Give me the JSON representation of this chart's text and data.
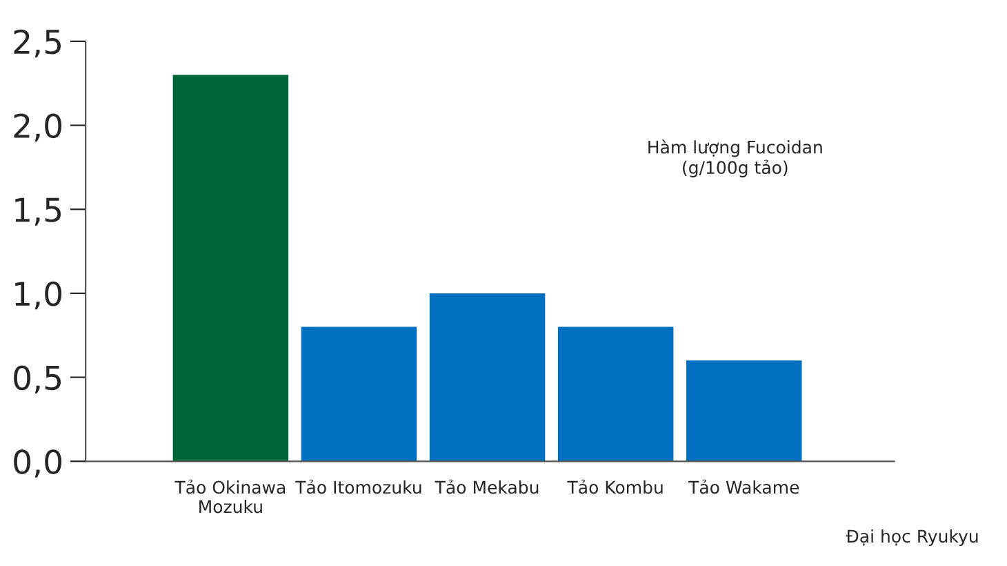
{
  "chart_data": {
    "type": "bar",
    "categories": [
      "Tảo Okinawa\nMozuku",
      "Tảo Itomozuku",
      "Tảo Mekabu",
      "Tảo Kombu",
      "Tảo Wakame"
    ],
    "values": [
      2.3,
      0.8,
      1.0,
      0.8,
      0.6
    ],
    "colors": [
      "#006838",
      "#0070c0",
      "#0070c0",
      "#0070c0",
      "#0070c0"
    ],
    "ylim": [
      0,
      2.5
    ],
    "yticks": [
      {
        "value": 0,
        "label": "0,0"
      },
      {
        "value": 0.5,
        "label": "0,5"
      },
      {
        "value": 1,
        "label": "1,0"
      },
      {
        "value": 1.5,
        "label": "1,5"
      },
      {
        "value": 2,
        "label": "2,0"
      },
      {
        "value": 2.5,
        "label": "2,5"
      }
    ],
    "grid": false,
    "annotations": [
      "Hàm lượng Fucoidan\n(g/100g tảo)",
      "Đại học Ryukyu"
    ]
  }
}
